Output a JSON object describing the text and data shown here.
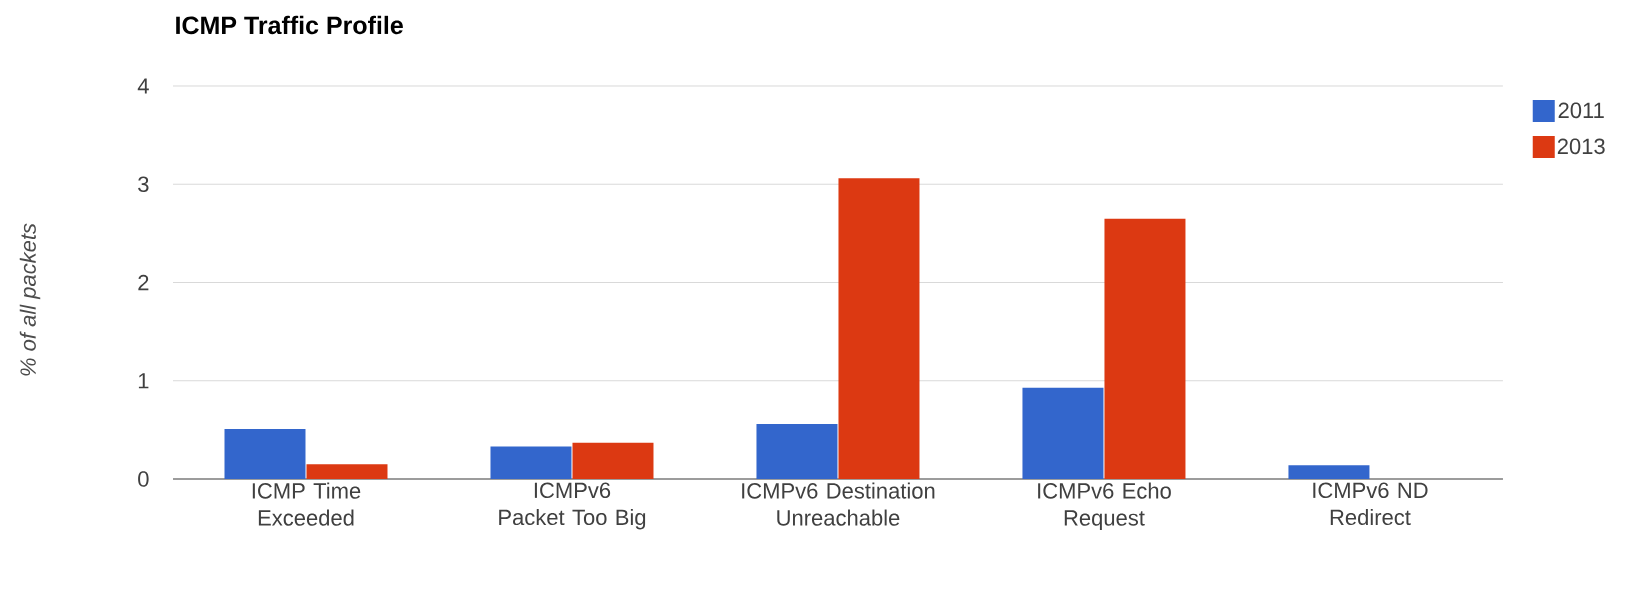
{
  "chart_data": {
    "type": "bar",
    "title": "ICMP Traffic Profile",
    "ylabel": "% of all packets",
    "categories": [
      "ICMP Time Exceeded",
      "ICMPv6 Packet Too Big",
      "ICMPv6 Destination Unreachable",
      "ICMPv6 Echo Request",
      "ICMPv6 ND Redirect"
    ],
    "series": [
      {
        "name": "2011",
        "color": "#3366cc",
        "values": [
          0.51,
          0.33,
          0.56,
          0.93,
          0.14
        ]
      },
      {
        "name": "2013",
        "color": "#dc3912",
        "values": [
          0.15,
          0.37,
          3.06,
          2.65,
          0
        ]
      }
    ],
    "ylim": [
      0,
      4
    ],
    "yticks": [
      0,
      1,
      2,
      3,
      4
    ],
    "grid": "y",
    "legend": "right"
  }
}
